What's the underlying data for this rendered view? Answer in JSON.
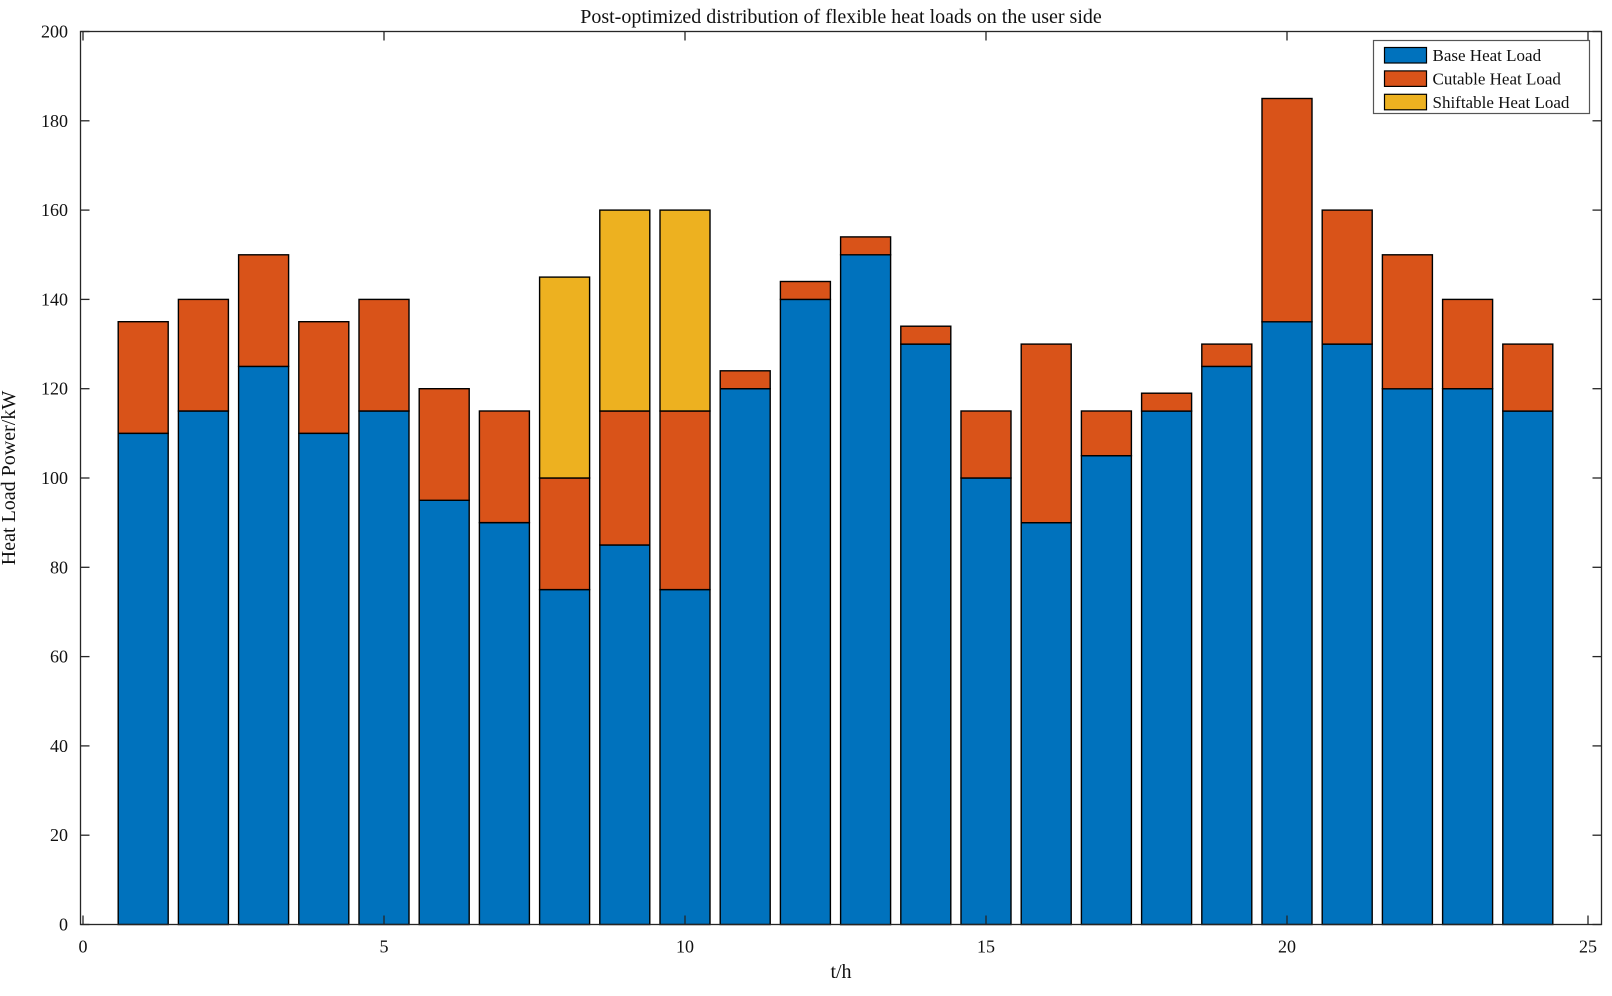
{
  "figure": {
    "background": "#ffffff"
  },
  "chart_data": {
    "type": "bar",
    "stacked": true,
    "title": "Post-optimized distribution of flexible heat loads on the user side",
    "xlabel": "t/h",
    "ylabel": "Heat Load Power/kW",
    "categories": [
      1,
      2,
      3,
      4,
      5,
      6,
      7,
      8,
      9,
      10,
      11,
      12,
      13,
      14,
      15,
      16,
      17,
      18,
      19,
      20,
      21,
      22,
      23,
      24
    ],
    "series": [
      {
        "name": "Base Heat Load",
        "color": "#0072BD",
        "values": [
          110,
          115,
          125,
          110,
          115,
          95,
          90,
          75,
          85,
          75,
          120,
          140,
          150,
          130,
          100,
          90,
          105,
          115,
          125,
          135,
          130,
          120,
          120,
          115
        ]
      },
      {
        "name": "Cutable Heat Load",
        "color": "#D95319",
        "values": [
          25,
          25,
          25,
          25,
          25,
          25,
          25,
          25,
          30,
          40,
          4,
          4,
          4,
          4,
          15,
          40,
          10,
          4,
          5,
          50,
          30,
          30,
          20,
          15
        ]
      },
      {
        "name": "Shiftable Heat Load",
        "color": "#EDB120",
        "values": [
          0,
          0,
          0,
          0,
          0,
          0,
          0,
          45,
          45,
          45,
          0,
          0,
          0,
          0,
          0,
          0,
          0,
          0,
          0,
          0,
          0,
          0,
          0,
          0
        ]
      }
    ],
    "xlim": [
      0,
      25.25
    ],
    "ylim": [
      0,
      200
    ],
    "xticks": [
      0,
      5,
      10,
      15,
      20,
      25
    ],
    "yticks": [
      0,
      20,
      40,
      60,
      80,
      100,
      120,
      140,
      160,
      180,
      200
    ],
    "grid": false,
    "legend_position": "top-right",
    "bar_width_fraction": 0.83,
    "axis_color": "#262626",
    "text_color": "#111111",
    "bar_edge_color": "#000000",
    "legend_border_color": "#555555",
    "legend_background": "#ffffff"
  }
}
